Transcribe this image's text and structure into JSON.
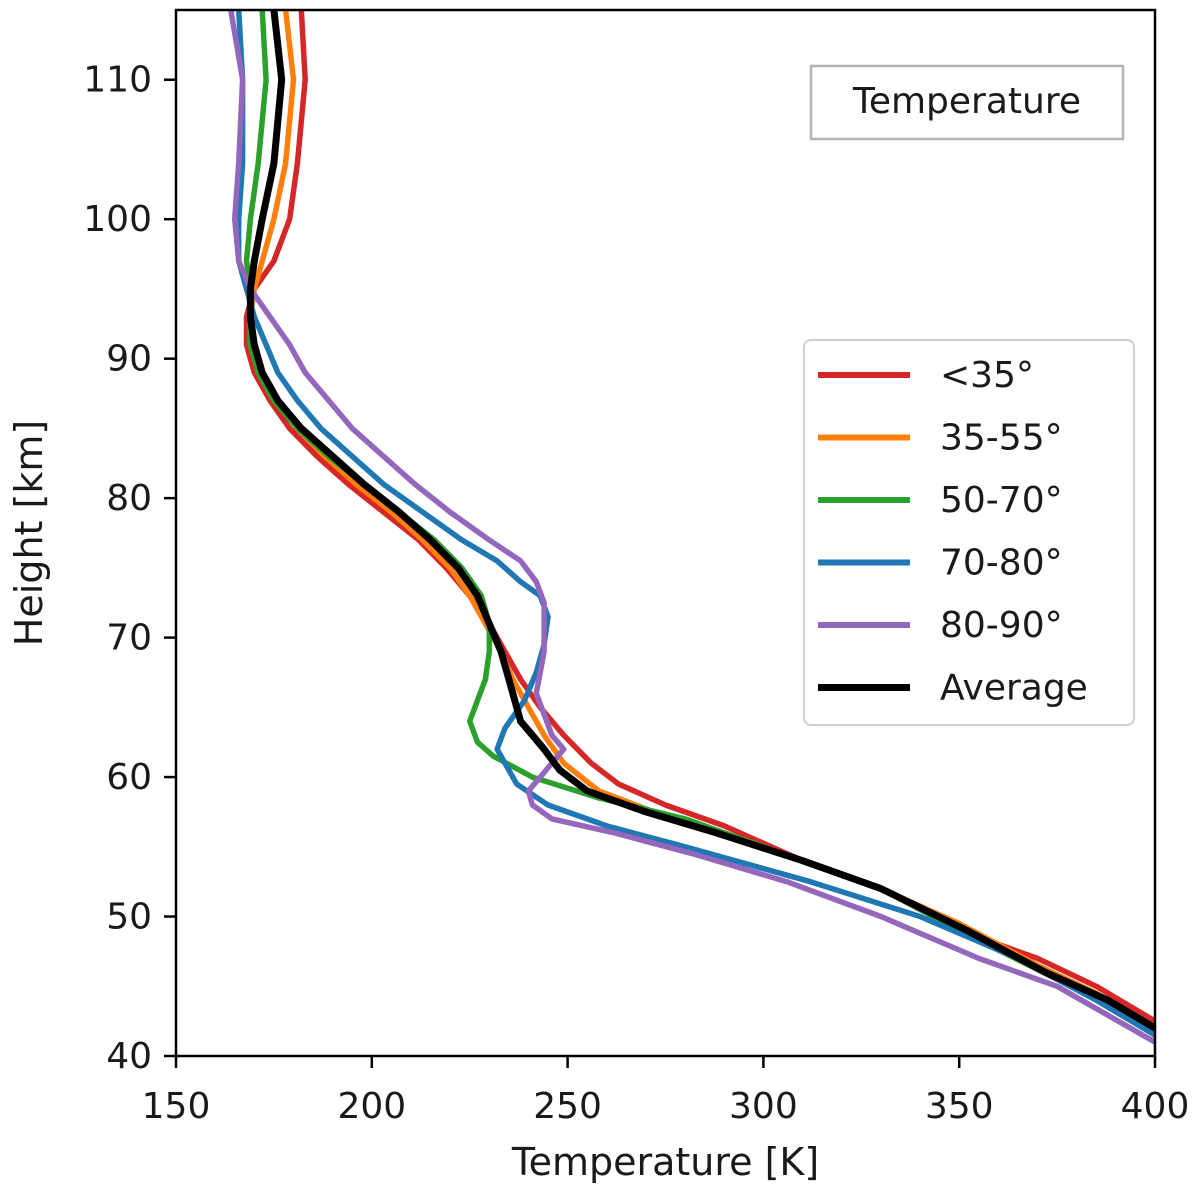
{
  "chart_data": {
    "type": "line",
    "title": "Temperature",
    "xlabel": "Temperature [K]",
    "ylabel": "Height [km]",
    "xlim": [
      150,
      400
    ],
    "ylim": [
      40,
      115
    ],
    "xticks": [
      150,
      200,
      250,
      300,
      350,
      400
    ],
    "yticks": [
      40,
      50,
      60,
      70,
      80,
      90,
      100,
      110
    ],
    "grid": false,
    "legend_position": "center-right",
    "title_position": "top-right boxed",
    "series": [
      {
        "name": "<35°",
        "color": "#d62728",
        "points": [
          [
            182,
            115
          ],
          [
            183,
            110
          ],
          [
            181,
            104
          ],
          [
            179,
            100
          ],
          [
            175,
            97
          ],
          [
            170,
            95
          ],
          [
            168,
            93
          ],
          [
            168,
            91
          ],
          [
            170,
            89
          ],
          [
            174,
            87
          ],
          [
            179,
            85
          ],
          [
            186,
            83
          ],
          [
            194,
            81
          ],
          [
            203,
            79
          ],
          [
            212,
            77
          ],
          [
            219,
            75
          ],
          [
            225,
            73
          ],
          [
            230,
            71
          ],
          [
            234,
            69
          ],
          [
            238,
            67
          ],
          [
            243,
            65
          ],
          [
            249,
            63
          ],
          [
            256,
            61
          ],
          [
            263,
            59.5
          ],
          [
            275,
            58
          ],
          [
            290,
            56.5
          ],
          [
            310,
            54
          ],
          [
            330,
            52
          ],
          [
            350,
            49
          ],
          [
            370,
            47
          ],
          [
            385,
            45
          ],
          [
            400,
            42.5
          ]
        ]
      },
      {
        "name": "35-55°",
        "color": "#ff7f0e",
        "points": [
          [
            178,
            115
          ],
          [
            180,
            110
          ],
          [
            178,
            104
          ],
          [
            175,
            100
          ],
          [
            172,
            97
          ],
          [
            170,
            95
          ],
          [
            169,
            93
          ],
          [
            169,
            91
          ],
          [
            171,
            89
          ],
          [
            175,
            87
          ],
          [
            181,
            85
          ],
          [
            188,
            83
          ],
          [
            196,
            81
          ],
          [
            205,
            79
          ],
          [
            213,
            77
          ],
          [
            220,
            75
          ],
          [
            225,
            73
          ],
          [
            229,
            71
          ],
          [
            233,
            69
          ],
          [
            236,
            67
          ],
          [
            240,
            65
          ],
          [
            244,
            63
          ],
          [
            249,
            61
          ],
          [
            258,
            59
          ],
          [
            272,
            57.5
          ],
          [
            290,
            56
          ],
          [
            310,
            54
          ],
          [
            330,
            52
          ],
          [
            350,
            49.5
          ],
          [
            370,
            46.5
          ],
          [
            385,
            44.5
          ],
          [
            400,
            42
          ]
        ]
      },
      {
        "name": "50-70°",
        "color": "#2ca02c",
        "points": [
          [
            172,
            115
          ],
          [
            173,
            110
          ],
          [
            171,
            104
          ],
          [
            169,
            100
          ],
          [
            168,
            97
          ],
          [
            169,
            95
          ],
          [
            169,
            93
          ],
          [
            169,
            91
          ],
          [
            171,
            89
          ],
          [
            175,
            87
          ],
          [
            181,
            85
          ],
          [
            189,
            83
          ],
          [
            198,
            81
          ],
          [
            207,
            79
          ],
          [
            216,
            77
          ],
          [
            223,
            75
          ],
          [
            228,
            73
          ],
          [
            230,
            71
          ],
          [
            230,
            69
          ],
          [
            229,
            67
          ],
          [
            227,
            65.5
          ],
          [
            225,
            64
          ],
          [
            227,
            62.5
          ],
          [
            231,
            61.5
          ],
          [
            241,
            60
          ],
          [
            258,
            58.5
          ],
          [
            280,
            57
          ],
          [
            305,
            54.5
          ],
          [
            330,
            52
          ],
          [
            350,
            49
          ],
          [
            375,
            45.5
          ],
          [
            400,
            41.8
          ]
        ]
      },
      {
        "name": "70-80°",
        "color": "#1f77b4",
        "points": [
          [
            166,
            115
          ],
          [
            167,
            110
          ],
          [
            167,
            104
          ],
          [
            166,
            100
          ],
          [
            166,
            97
          ],
          [
            168,
            95
          ],
          [
            170,
            93
          ],
          [
            173,
            91
          ],
          [
            176,
            89
          ],
          [
            181,
            87
          ],
          [
            187,
            85
          ],
          [
            195,
            83
          ],
          [
            203,
            81
          ],
          [
            213,
            79
          ],
          [
            223,
            77
          ],
          [
            232,
            75.5
          ],
          [
            238,
            74
          ],
          [
            243,
            73
          ],
          [
            245,
            71.5
          ],
          [
            244,
            69.5
          ],
          [
            242,
            67.5
          ],
          [
            239,
            65.5
          ],
          [
            234,
            63.5
          ],
          [
            232,
            62
          ],
          [
            234,
            61
          ],
          [
            237,
            59.5
          ],
          [
            245,
            58
          ],
          [
            260,
            56.5
          ],
          [
            280,
            55
          ],
          [
            312,
            52.5
          ],
          [
            340,
            50
          ],
          [
            365,
            47
          ],
          [
            385,
            44
          ],
          [
            400,
            41.5
          ]
        ]
      },
      {
        "name": "80-90°",
        "color": "#9467bd",
        "points": [
          [
            164,
            115
          ],
          [
            167,
            110
          ],
          [
            166,
            104
          ],
          [
            165,
            100
          ],
          [
            166,
            97
          ],
          [
            169,
            95
          ],
          [
            174,
            93
          ],
          [
            179,
            91
          ],
          [
            183,
            89
          ],
          [
            189,
            87
          ],
          [
            195,
            85
          ],
          [
            203,
            83
          ],
          [
            211,
            81
          ],
          [
            220,
            79
          ],
          [
            230,
            77
          ],
          [
            238,
            75.5
          ],
          [
            242,
            74
          ],
          [
            244,
            72.5
          ],
          [
            244,
            70.5
          ],
          [
            244,
            69
          ],
          [
            243,
            67.5
          ],
          [
            242,
            66
          ],
          [
            244,
            64.5
          ],
          [
            246,
            63
          ],
          [
            249,
            62
          ],
          [
            246,
            61
          ],
          [
            243,
            60
          ],
          [
            240,
            59
          ],
          [
            241,
            58
          ],
          [
            246,
            57
          ],
          [
            262,
            56
          ],
          [
            282,
            54.5
          ],
          [
            306,
            52.5
          ],
          [
            330,
            50
          ],
          [
            355,
            47
          ],
          [
            375,
            45
          ],
          [
            400,
            41
          ]
        ]
      },
      {
        "name": "Average",
        "color": "#000000",
        "points": [
          [
            175,
            115
          ],
          [
            177,
            110
          ],
          [
            175,
            104
          ],
          [
            172,
            100
          ],
          [
            170,
            97
          ],
          [
            169,
            95
          ],
          [
            169,
            93
          ],
          [
            170,
            91
          ],
          [
            172,
            89
          ],
          [
            176,
            87
          ],
          [
            182,
            85
          ],
          [
            190,
            83
          ],
          [
            198,
            81
          ],
          [
            207,
            79
          ],
          [
            215,
            77
          ],
          [
            222,
            75
          ],
          [
            227,
            73
          ],
          [
            230,
            71
          ],
          [
            233,
            69
          ],
          [
            235,
            67
          ],
          [
            237,
            65
          ],
          [
            238,
            64
          ],
          [
            241,
            63
          ],
          [
            244,
            62
          ],
          [
            248,
            60.5
          ],
          [
            255,
            59
          ],
          [
            270,
            57.5
          ],
          [
            288,
            56
          ],
          [
            310,
            54
          ],
          [
            330,
            52
          ],
          [
            352,
            49
          ],
          [
            372,
            46
          ],
          [
            388,
            44
          ],
          [
            400,
            42
          ]
        ]
      }
    ]
  }
}
